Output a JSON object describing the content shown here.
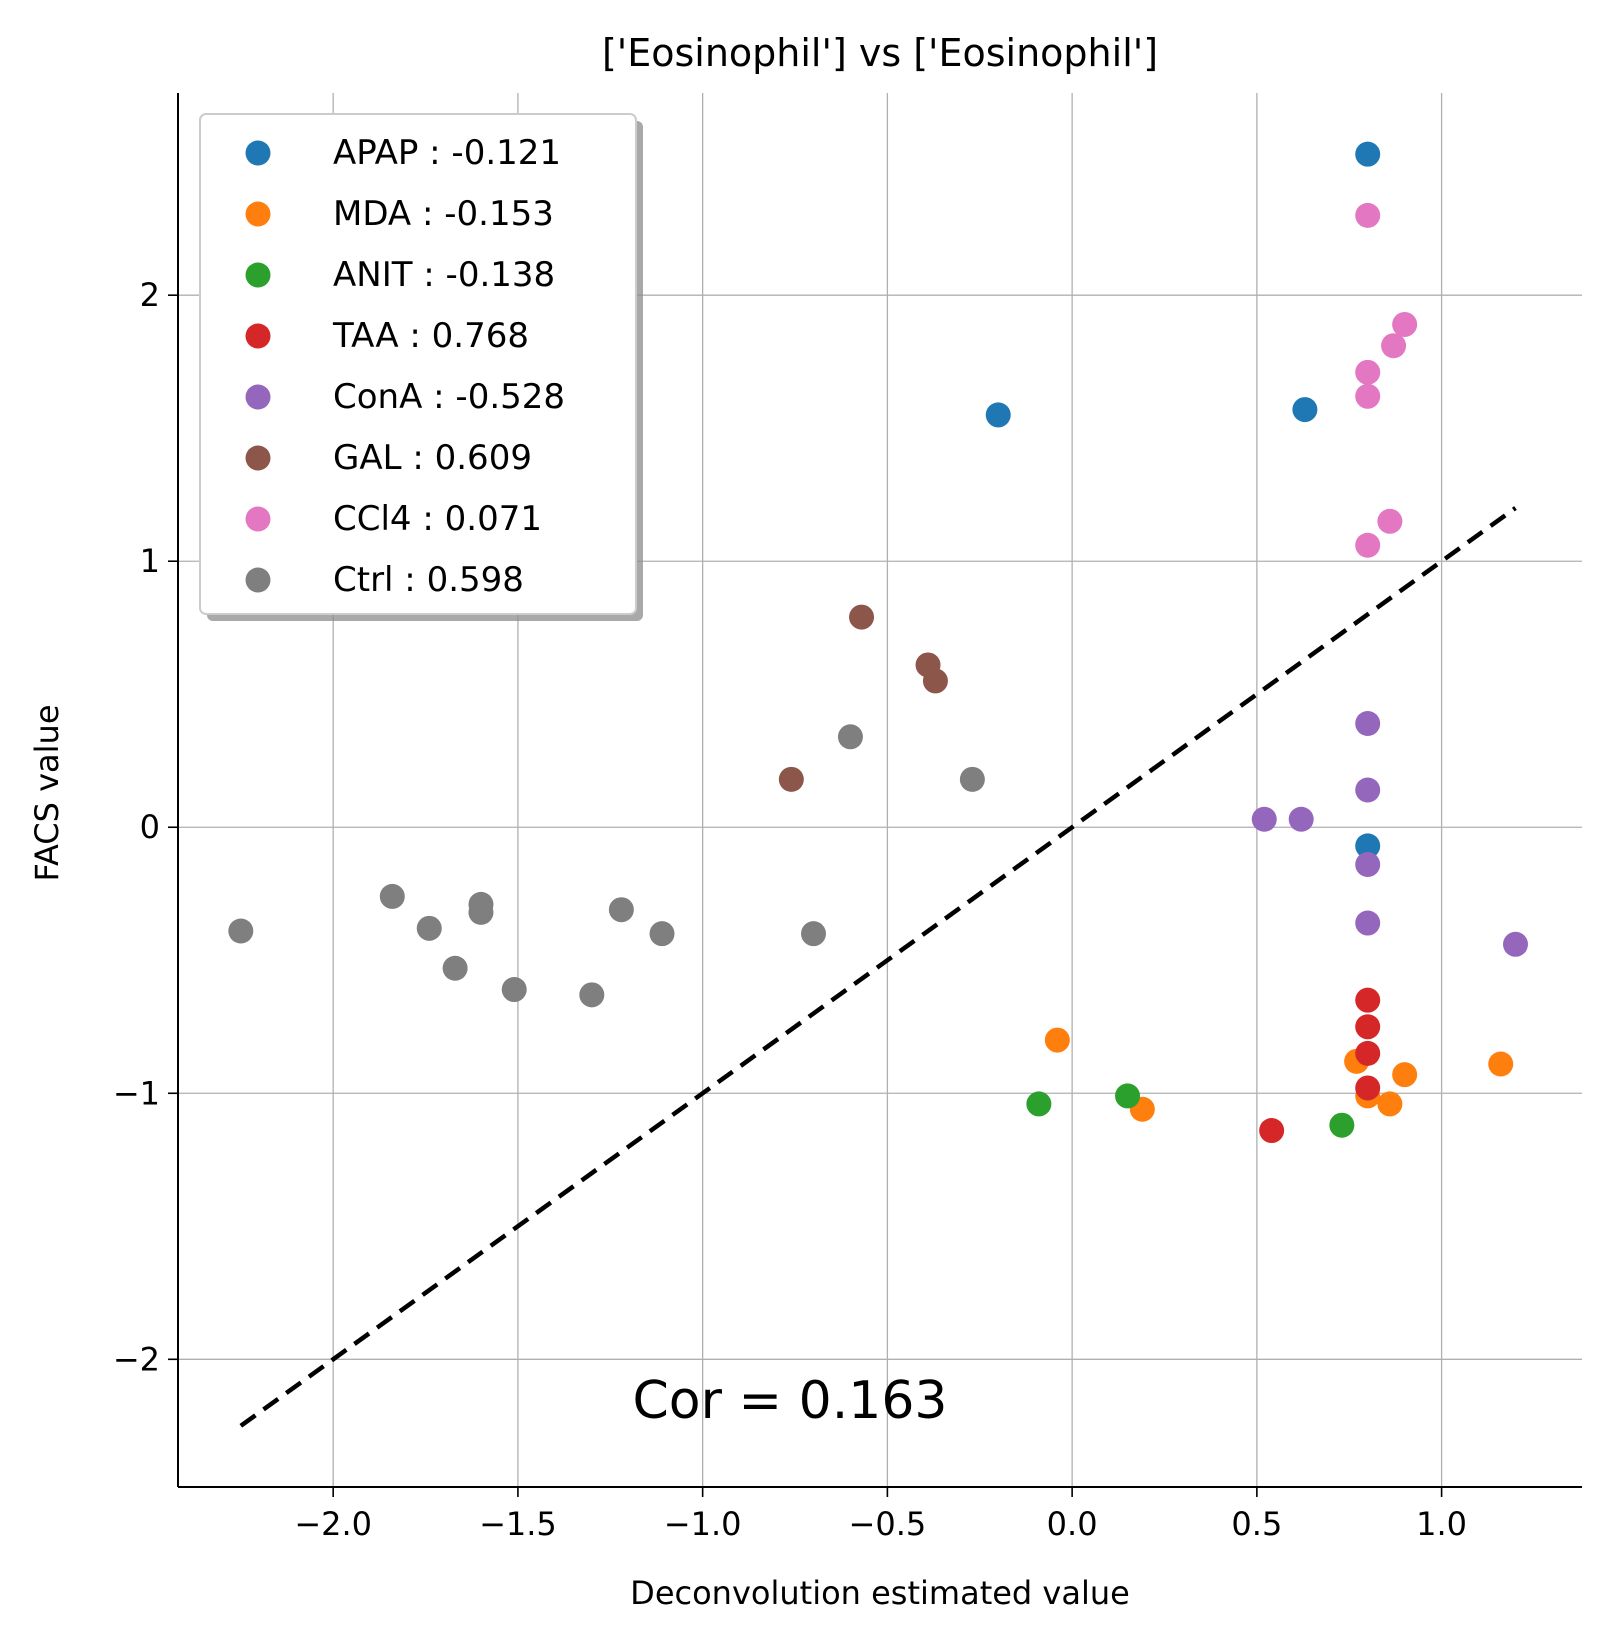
{
  "chart_data": {
    "type": "scatter",
    "title": "['Eosinophil'] vs ['Eosinophil']",
    "xlabel": "Deconvolution estimated value",
    "ylabel": "FACS value",
    "xlim": [
      -2.42,
      1.38
    ],
    "ylim": [
      -2.48,
      2.76
    ],
    "xticks": [
      -2.0,
      -1.5,
      -1.0,
      -0.5,
      0.0,
      0.5,
      1.0
    ],
    "xtick_labels": [
      "−2.0",
      "−1.5",
      "−1.0",
      "−0.5",
      "0.0",
      "0.5",
      "1.0"
    ],
    "yticks": [
      -2,
      -1,
      0,
      1,
      2
    ],
    "ytick_labels": [
      "−2",
      "−1",
      "0",
      "1",
      "2"
    ],
    "grid": true,
    "legend_position": "top-left",
    "annotation": "Cor = 0.163",
    "reference_line": {
      "x": [
        -2.25,
        1.2
      ],
      "y": [
        -2.25,
        1.2
      ],
      "style": "dashed",
      "color": "#000000"
    },
    "series": [
      {
        "name": "APAP : -0.121",
        "color": "#1f77b4",
        "points": [
          [
            0.8,
            2.53
          ],
          [
            -0.2,
            1.55
          ],
          [
            0.63,
            1.57
          ],
          [
            0.8,
            -0.07
          ]
        ]
      },
      {
        "name": "MDA : -0.153",
        "color": "#ff7f0e",
        "points": [
          [
            -0.04,
            -0.8
          ],
          [
            0.19,
            -1.06
          ],
          [
            0.77,
            -0.88
          ],
          [
            0.8,
            -1.01
          ],
          [
            0.86,
            -1.04
          ],
          [
            0.9,
            -0.93
          ],
          [
            1.16,
            -0.89
          ]
        ]
      },
      {
        "name": "ANIT : -0.138",
        "color": "#2ca02c",
        "points": [
          [
            -0.09,
            -1.04
          ],
          [
            0.15,
            -1.01
          ],
          [
            0.73,
            -1.12
          ]
        ]
      },
      {
        "name": "TAA : 0.768",
        "color": "#d62728",
        "points": [
          [
            0.54,
            -1.14
          ],
          [
            0.8,
            -0.65
          ],
          [
            0.8,
            -0.75
          ],
          [
            0.8,
            -0.85
          ],
          [
            0.8,
            -0.98
          ]
        ]
      },
      {
        "name": "ConA : -0.528",
        "color": "#9467bd",
        "points": [
          [
            0.8,
            0.39
          ],
          [
            0.8,
            0.14
          ],
          [
            0.52,
            0.03
          ],
          [
            0.62,
            0.03
          ],
          [
            0.8,
            -0.14
          ],
          [
            0.8,
            -0.36
          ],
          [
            1.2,
            -0.44
          ]
        ]
      },
      {
        "name": "GAL : 0.609",
        "color": "#8c564b",
        "points": [
          [
            -0.57,
            0.79
          ],
          [
            -0.39,
            0.61
          ],
          [
            -0.37,
            0.55
          ],
          [
            -0.76,
            0.18
          ]
        ]
      },
      {
        "name": "CCl4 : 0.071",
        "color": "#e377c2",
        "points": [
          [
            0.8,
            2.3
          ],
          [
            0.9,
            1.89
          ],
          [
            0.87,
            1.81
          ],
          [
            0.8,
            1.71
          ],
          [
            0.8,
            1.62
          ],
          [
            0.86,
            1.15
          ],
          [
            0.8,
            1.06
          ]
        ]
      },
      {
        "name": "Ctrl : 0.598",
        "color": "#7f7f7f",
        "points": [
          [
            -0.6,
            0.34
          ],
          [
            -0.27,
            0.18
          ],
          [
            -2.25,
            -0.39
          ],
          [
            -1.84,
            -0.26
          ],
          [
            -1.74,
            -0.38
          ],
          [
            -1.6,
            -0.29
          ],
          [
            -1.6,
            -0.32
          ],
          [
            -1.67,
            -0.53
          ],
          [
            -1.51,
            -0.61
          ],
          [
            -1.3,
            -0.63
          ],
          [
            -1.22,
            -0.31
          ],
          [
            -1.11,
            -0.4
          ],
          [
            -0.7,
            -0.4
          ]
        ]
      }
    ]
  }
}
